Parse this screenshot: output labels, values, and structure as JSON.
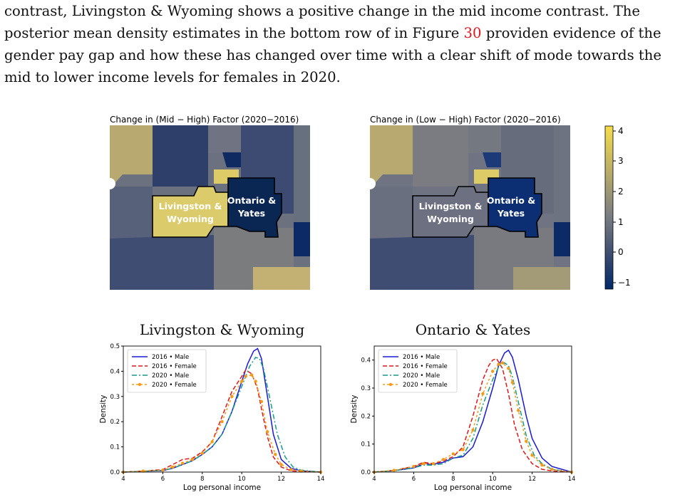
{
  "paragraph": {
    "line1": "contrast, Livingston & Wyoming shows a positive change in the mid income contrast. The",
    "line2_before": "posterior mean density estimates in the bottom row of in Figure ",
    "line2_ref": "30",
    "line2_after": " providen evidence of the",
    "line3": "gender pay gap and how these has changed over time with a clear shift of mode towards the",
    "line4": "mid to lower income levels for females in 2020."
  },
  "maps": {
    "left_title": "Change in (Mid − High) Factor (2020−2016)",
    "right_title": "Change in (Low − High) Factor (2020−2016)",
    "region_a_line1": "Livingston &",
    "region_a_line2": "Wyoming",
    "region_b_line1": "Ontario &",
    "region_b_line2": "Yates",
    "colorbar_ticks": [
      "4",
      "3",
      "2",
      "1",
      "0",
      "−1"
    ],
    "colors": {
      "low": "#002a6a",
      "mid": "#7a7d82",
      "high": "#f5dc4c"
    }
  },
  "chart_data": [
    {
      "type": "line",
      "title": "Livingston & Wyoming",
      "xlabel": "Log personal income",
      "ylabel": "Density",
      "xlim": [
        4,
        14
      ],
      "ylim": [
        0,
        0.5
      ],
      "xticks": [
        "4",
        "6",
        "8",
        "10",
        "12",
        "14"
      ],
      "yticks": [
        "0.0",
        "0.1",
        "0.2",
        "0.3",
        "0.4",
        "0.5"
      ],
      "legend_position": "top-left",
      "series": [
        {
          "name": "2016 • Male",
          "color": "#1a1ad6",
          "style": "solid",
          "x": [
            4,
            5,
            6,
            6.5,
            7,
            7.5,
            8,
            8.5,
            9,
            9.5,
            10,
            10.3,
            10.6,
            10.8,
            11,
            11.3,
            11.6,
            12,
            12.5,
            13,
            14
          ],
          "y": [
            0.0,
            0.003,
            0.006,
            0.015,
            0.03,
            0.045,
            0.07,
            0.1,
            0.15,
            0.24,
            0.36,
            0.43,
            0.48,
            0.49,
            0.45,
            0.3,
            0.15,
            0.05,
            0.015,
            0.005,
            0.0
          ]
        },
        {
          "name": "2016 • Female",
          "color": "#e0161c",
          "style": "dashed",
          "x": [
            4,
            5,
            6,
            6.5,
            7,
            7.5,
            8,
            8.5,
            9,
            9.5,
            10,
            10.2,
            10.5,
            10.8,
            11,
            11.3,
            11.6,
            12,
            12.5,
            13,
            14
          ],
          "y": [
            0.0,
            0.004,
            0.01,
            0.03,
            0.05,
            0.055,
            0.08,
            0.12,
            0.22,
            0.32,
            0.38,
            0.405,
            0.39,
            0.33,
            0.25,
            0.14,
            0.06,
            0.02,
            0.005,
            0.002,
            0.0
          ]
        },
        {
          "name": "2020 • Male",
          "color": "#159c8a",
          "style": "dashdot",
          "x": [
            4,
            5,
            6,
            6.5,
            7,
            7.5,
            8,
            8.5,
            9,
            9.5,
            10,
            10.4,
            10.7,
            10.9,
            11.1,
            11.4,
            11.8,
            12.2,
            12.6,
            13,
            14
          ],
          "y": [
            0.0,
            0.003,
            0.007,
            0.015,
            0.03,
            0.045,
            0.07,
            0.1,
            0.15,
            0.24,
            0.34,
            0.42,
            0.455,
            0.45,
            0.41,
            0.3,
            0.15,
            0.06,
            0.02,
            0.008,
            0.0
          ]
        },
        {
          "name": "2020 • Female",
          "color": "#f29b16",
          "style": "dotted-star",
          "x": [
            4,
            5,
            6,
            6.5,
            7,
            7.5,
            8,
            8.5,
            9,
            9.5,
            10,
            10.2,
            10.5,
            10.7,
            11,
            11.3,
            11.7,
            12,
            12.5,
            13,
            14
          ],
          "y": [
            0.0,
            0.004,
            0.008,
            0.02,
            0.035,
            0.05,
            0.075,
            0.12,
            0.2,
            0.3,
            0.36,
            0.38,
            0.385,
            0.36,
            0.28,
            0.16,
            0.07,
            0.03,
            0.01,
            0.004,
            0.0
          ]
        }
      ]
    },
    {
      "type": "line",
      "title": "Ontario & Yates",
      "xlabel": "Log personal income",
      "ylabel": "Density",
      "xlim": [
        4,
        14
      ],
      "ylim": [
        0,
        0.45
      ],
      "xticks": [
        "4",
        "6",
        "8",
        "10",
        "12",
        "14"
      ],
      "yticks": [
        "0.0",
        "0.1",
        "0.2",
        "0.3",
        "0.4"
      ],
      "legend_position": "top-left",
      "series": [
        {
          "name": "2016 • Male",
          "color": "#1a1ad6",
          "style": "solid",
          "x": [
            4,
            5,
            6,
            6.5,
            7,
            7.5,
            8,
            8.5,
            9,
            9.5,
            10,
            10.3,
            10.6,
            10.8,
            11,
            11.3,
            11.7,
            12,
            12.5,
            13,
            14
          ],
          "y": [
            0.0,
            0.005,
            0.015,
            0.03,
            0.028,
            0.035,
            0.05,
            0.055,
            0.09,
            0.18,
            0.3,
            0.38,
            0.425,
            0.435,
            0.41,
            0.33,
            0.2,
            0.12,
            0.05,
            0.02,
            0.0
          ]
        },
        {
          "name": "2016 • Female",
          "color": "#e0161c",
          "style": "dashed",
          "x": [
            4,
            5,
            6,
            6.5,
            7,
            7.5,
            8,
            8.5,
            9,
            9.5,
            9.8,
            10,
            10.2,
            10.5,
            10.8,
            11.1,
            11.5,
            12,
            12.5,
            13,
            14
          ],
          "y": [
            0.0,
            0.006,
            0.02,
            0.035,
            0.03,
            0.04,
            0.055,
            0.09,
            0.2,
            0.33,
            0.38,
            0.4,
            0.405,
            0.37,
            0.28,
            0.17,
            0.08,
            0.03,
            0.01,
            0.004,
            0.0
          ]
        },
        {
          "name": "2020 • Male",
          "color": "#159c8a",
          "style": "dashdot",
          "x": [
            4,
            5,
            6,
            6.5,
            7,
            7.5,
            8,
            8.5,
            9,
            9.5,
            10,
            10.3,
            10.6,
            10.8,
            11,
            11.3,
            11.7,
            12.1,
            12.5,
            13,
            14
          ],
          "y": [
            0.0,
            0.005,
            0.015,
            0.025,
            0.025,
            0.03,
            0.05,
            0.06,
            0.12,
            0.24,
            0.33,
            0.375,
            0.39,
            0.38,
            0.34,
            0.25,
            0.13,
            0.06,
            0.03,
            0.01,
            0.0
          ]
        },
        {
          "name": "2020 • Female",
          "color": "#f29b16",
          "style": "dotted-star",
          "x": [
            4,
            5,
            6,
            6.5,
            7,
            7.5,
            8,
            8.5,
            9,
            9.5,
            10,
            10.3,
            10.5,
            10.8,
            11,
            11.3,
            11.7,
            12,
            12.5,
            13,
            14
          ],
          "y": [
            0.0,
            0.006,
            0.02,
            0.03,
            0.03,
            0.045,
            0.065,
            0.08,
            0.15,
            0.28,
            0.36,
            0.385,
            0.39,
            0.37,
            0.32,
            0.22,
            0.11,
            0.06,
            0.025,
            0.01,
            0.0
          ]
        }
      ]
    }
  ]
}
